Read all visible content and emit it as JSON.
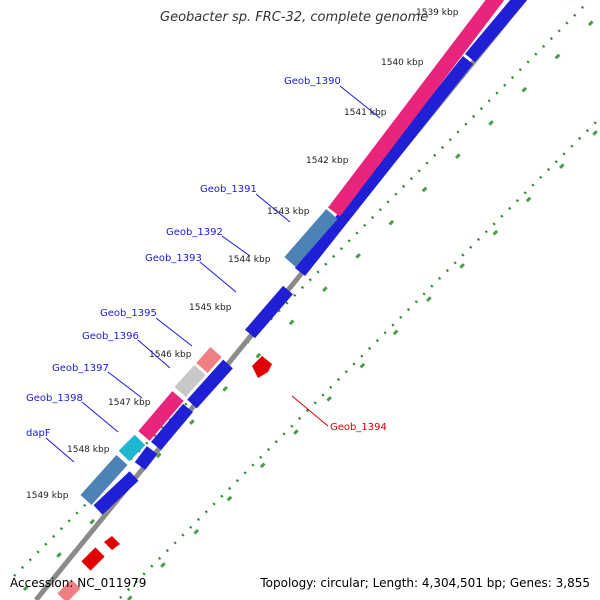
{
  "title": "Geobacter sp. FRC-32, complete genome",
  "footer": {
    "accession": "Accession: NC_011979",
    "topology": "Topology: circular; Length: 4,304,501 bp; Genes: 3,855"
  },
  "ticks": [
    {
      "label": "1539 kbp"
    },
    {
      "label": "1540 kbp"
    },
    {
      "label": "1541 kbp"
    },
    {
      "label": "1542 kbp"
    },
    {
      "label": "1543 kbp"
    },
    {
      "label": "1544 kbp"
    },
    {
      "label": "1545 kbp"
    },
    {
      "label": "1546 kbp"
    },
    {
      "label": "1547 kbp"
    },
    {
      "label": "1548 kbp"
    },
    {
      "label": "1549 kbp"
    }
  ],
  "genes": [
    {
      "label": "Geob_1390"
    },
    {
      "label": "Geob_1391"
    },
    {
      "label": "Geob_1392"
    },
    {
      "label": "Geob_1393"
    },
    {
      "label": "Geob_1394"
    },
    {
      "label": "Geob_1395"
    },
    {
      "label": "Geob_1396"
    },
    {
      "label": "Geob_1397"
    },
    {
      "label": "Geob_1398"
    },
    {
      "label": "dapF"
    }
  ],
  "colors": {
    "cds_forward": "#1f1fd6",
    "cds_reverse": "#e00000",
    "cog_pink": "#e8257a",
    "cog_steelblue": "#4c82b6",
    "cog_salmon": "#f07f82",
    "cog_gray": "#c8c8c8",
    "cog_cyan": "#1fb6d2",
    "backbone": "#888888",
    "dots": "#2e8b2e"
  }
}
